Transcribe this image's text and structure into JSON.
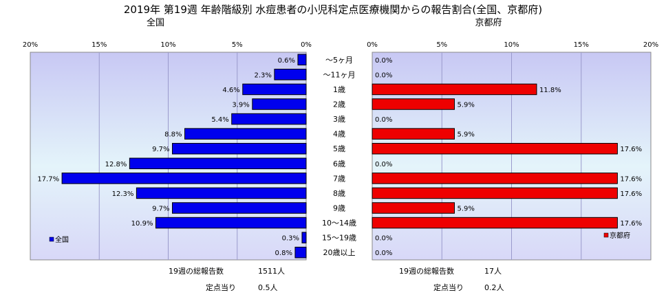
{
  "title": "2019年 第19週 年齢階級別 水痘患者の小児科定点医療機関からの報告割合(全国、京都府)",
  "colors": {
    "national_bar": "#0000ee",
    "kyoto_bar": "#ee0000",
    "bar_border": "#000000",
    "plot_bg_top": "#c8c8f4",
    "plot_bg_bottom": "#e8e8fa"
  },
  "chart_data": [
    {
      "type": "bar",
      "orientation": "horizontal",
      "direction": "right-to-left",
      "subtitle": "全国",
      "categories": [
        "〜5ヶ月",
        "〜11ヶ月",
        "1歳",
        "2歳",
        "3歳",
        "4歳",
        "5歳",
        "6歳",
        "7歳",
        "8歳",
        "9歳",
        "10〜14歳",
        "15〜19歳",
        "20歳以上"
      ],
      "values": [
        0.6,
        2.3,
        4.6,
        3.9,
        5.4,
        8.8,
        9.7,
        12.8,
        17.7,
        12.3,
        9.7,
        10.9,
        0.3,
        0.8
      ],
      "value_labels": [
        "0.6%",
        "2.3%",
        "4.6%",
        "3.9%",
        "5.4%",
        "8.8%",
        "9.7%",
        "12.8%",
        "17.7%",
        "12.3%",
        "9.7%",
        "10.9%",
        "0.3%",
        "0.8%"
      ],
      "xlim": [
        0,
        20
      ],
      "xticks": [
        "20%",
        "15%",
        "10%",
        "5%",
        "0%"
      ],
      "grid": true,
      "legend": "全国",
      "legend_position": "bottom-left",
      "footer": {
        "total_label": "19週の総報告数",
        "total_value": "1511人",
        "per_label": "定点当り",
        "per_value": "0.5人"
      }
    },
    {
      "type": "bar",
      "orientation": "horizontal",
      "direction": "left-to-right",
      "subtitle": "京都府",
      "categories": [
        "〜5ヶ月",
        "〜11ヶ月",
        "1歳",
        "2歳",
        "3歳",
        "4歳",
        "5歳",
        "6歳",
        "7歳",
        "8歳",
        "9歳",
        "10〜14歳",
        "15〜19歳",
        "20歳以上"
      ],
      "values": [
        0.0,
        0.0,
        11.8,
        5.9,
        0.0,
        5.9,
        17.6,
        0.0,
        17.6,
        17.6,
        5.9,
        17.6,
        0.0,
        0.0
      ],
      "value_labels": [
        "0.0%",
        "0.0%",
        "11.8%",
        "5.9%",
        "0.0%",
        "5.9%",
        "17.6%",
        "0.0%",
        "17.6%",
        "17.6%",
        "5.9%",
        "17.6%",
        "0.0%",
        "0.0%"
      ],
      "xlim": [
        0,
        20
      ],
      "xticks": [
        "0%",
        "5%",
        "10%",
        "15%",
        "20%"
      ],
      "grid": true,
      "legend": "京都府",
      "legend_position": "bottom-right",
      "footer": {
        "total_label": "19週の総報告数",
        "total_value": "17人",
        "per_label": "定点当り",
        "per_value": "0.2人"
      }
    }
  ]
}
